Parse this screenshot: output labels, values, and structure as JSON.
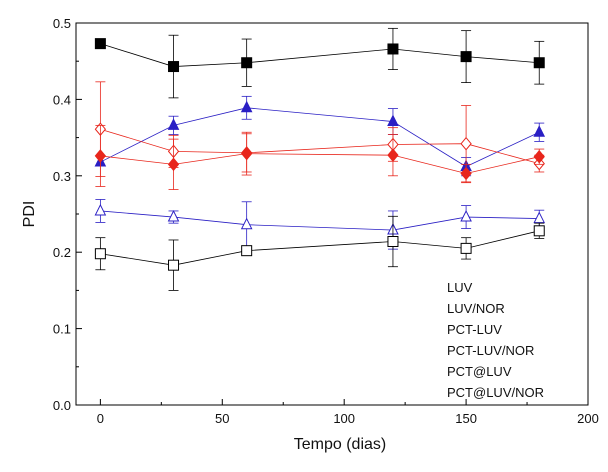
{
  "chart_data": {
    "type": "line",
    "xlabel": "Tempo (dias)",
    "ylabel": "PDI",
    "xlim": [
      -10,
      200
    ],
    "ylim": [
      0.0,
      0.5
    ],
    "xticks": [
      0,
      50,
      100,
      150,
      200
    ],
    "xtick_labels": [
      "0",
      "50",
      "100",
      "150",
      "200"
    ],
    "yticks": [
      0.0,
      0.1,
      0.2,
      0.3,
      0.4,
      0.5
    ],
    "ytick_labels": [
      "0.0",
      "0.1",
      "0.2",
      "0.3",
      "0.4",
      "0.5"
    ],
    "grid": false,
    "legend_position": "bottom-right",
    "series": [
      {
        "name": "LUV",
        "color": "#000000",
        "marker": "square-filled",
        "x": [
          0,
          30,
          60,
          120,
          150,
          180
        ],
        "y": [
          0.473,
          0.443,
          0.448,
          0.466,
          0.456,
          0.448
        ],
        "err": [
          0.0,
          0.041,
          0.031,
          0.027,
          0.034,
          0.028
        ]
      },
      {
        "name": "LUV/NOR",
        "color": "#2a1fc4",
        "marker": "triangle-filled",
        "x": [
          0,
          30,
          60,
          120,
          150,
          180
        ],
        "y": [
          0.318,
          0.366,
          0.389,
          0.371,
          0.312,
          0.357
        ],
        "err": [
          0.0,
          0.012,
          0.015,
          0.017,
          0.012,
          0.012
        ]
      },
      {
        "name": "PCT-LUV",
        "color": "#e8261c",
        "marker": "diamond-open",
        "x": [
          0,
          30,
          60,
          120,
          150,
          180
        ],
        "y": [
          0.361,
          0.332,
          0.33,
          0.341,
          0.342,
          0.316
        ],
        "err": [
          0.062,
          0.021,
          0.025,
          0.022,
          0.05,
          0.011
        ]
      },
      {
        "name": "PCT-LUV/NOR",
        "color": "#e8261c",
        "marker": "diamond-filled",
        "x": [
          0,
          30,
          60,
          120,
          150,
          180
        ],
        "y": [
          0.326,
          0.315,
          0.329,
          0.327,
          0.303,
          0.325
        ],
        "err": [
          0.04,
          0.033,
          0.028,
          0.027,
          0.012,
          0.01
        ]
      },
      {
        "name": "PCT@LUV",
        "color": "#2a1fc4",
        "marker": "triangle-open",
        "x": [
          0,
          30,
          60,
          120,
          150,
          180
        ],
        "y": [
          0.254,
          0.246,
          0.236,
          0.229,
          0.246,
          0.244
        ],
        "err": [
          0.015,
          0.008,
          0.03,
          0.025,
          0.015,
          0.011
        ]
      },
      {
        "name": "PCT@LUV/NOR",
        "color": "#000000",
        "marker": "square-open",
        "x": [
          0,
          30,
          60,
          120,
          150,
          180
        ],
        "y": [
          0.198,
          0.183,
          0.202,
          0.214,
          0.205,
          0.228
        ],
        "err": [
          0.021,
          0.033,
          0.006,
          0.033,
          0.014,
          0.01
        ]
      }
    ]
  }
}
